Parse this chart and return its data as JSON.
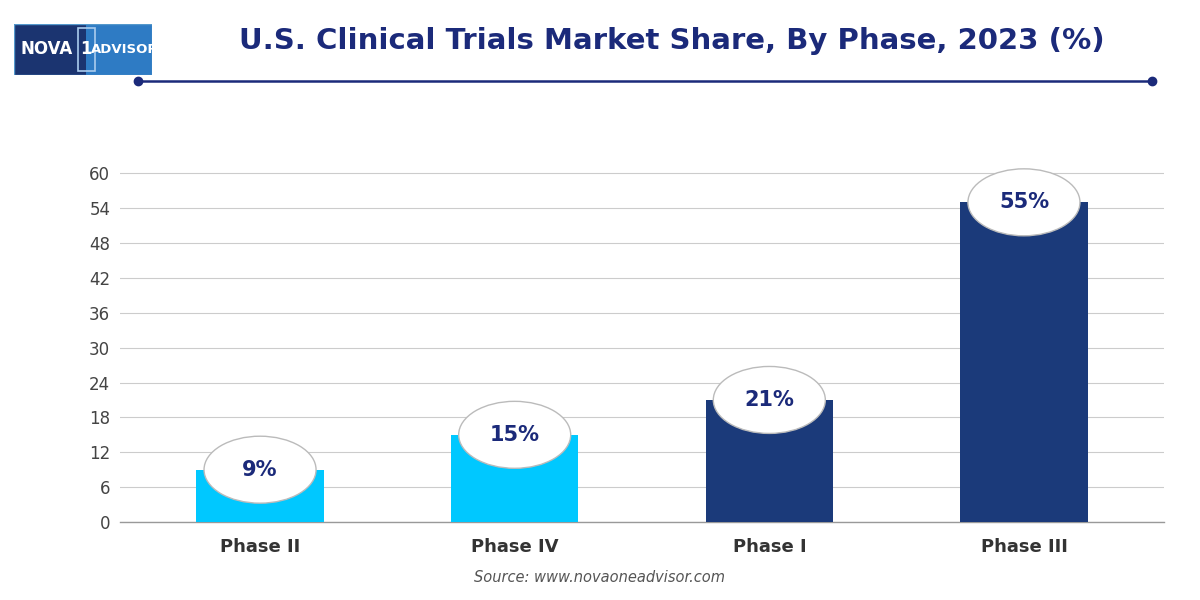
{
  "categories": [
    "Phase II",
    "Phase IV",
    "Phase I",
    "Phase III"
  ],
  "values": [
    9,
    15,
    21,
    55
  ],
  "labels": [
    "9%",
    "15%",
    "21%",
    "55%"
  ],
  "bar_colors": [
    "#00C8FF",
    "#00C8FF",
    "#1B3A7A",
    "#1B3A7A"
  ],
  "title": "U.S. Clinical Trials Market Share, By Phase, 2023 (%)",
  "title_color": "#1B2A7A",
  "title_fontsize": 21,
  "source_text": "Source: www.novaoneadvisor.com",
  "ylim": [
    0,
    64
  ],
  "yticks": [
    0,
    6,
    12,
    18,
    24,
    30,
    36,
    42,
    48,
    54,
    60
  ],
  "ytick_labels": [
    "0",
    "6",
    "12",
    "18",
    "24",
    "30",
    "36",
    "42",
    "48",
    "54",
    "60"
  ],
  "background_color": "#FFFFFF",
  "grid_color": "#CCCCCC",
  "bar_width": 0.5,
  "ellipse_color": "#FFFFFF",
  "ellipse_edge_color": "#BBBBBB",
  "label_color": "#1B2A7A",
  "label_fontsize": 15,
  "tick_fontsize": 12,
  "xlabel_fontsize": 13,
  "line_color": "#1B2A7A",
  "logo_dark_color": "#1B3470",
  "logo_light_color": "#2E7BC4"
}
